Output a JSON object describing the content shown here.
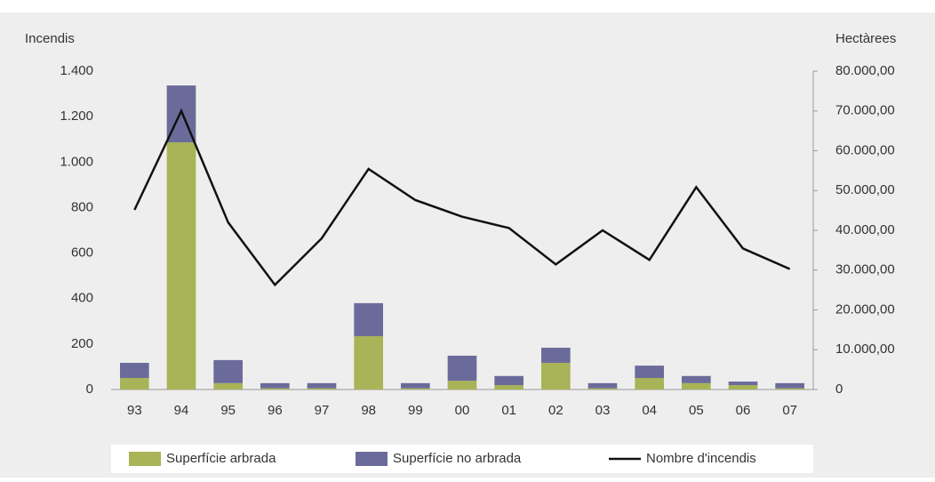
{
  "chart_data": {
    "type": "bar-line",
    "y_label": "Incendis",
    "y2_label": "Hectàrees",
    "categories": [
      "93",
      "94",
      "95",
      "96",
      "97",
      "98",
      "99",
      "00",
      "01",
      "02",
      "03",
      "04",
      "05",
      "06",
      "07"
    ],
    "series": [
      {
        "name": "Superfície arbrada",
        "color": "#a9b357",
        "axis": "y2",
        "type": "bar",
        "values": [
          2900,
          62100,
          1600,
          300,
          300,
          13400,
          300,
          2200,
          1100,
          6700,
          300,
          2900,
          1600,
          1100,
          300
        ]
      },
      {
        "name": "Superfície no arbrada",
        "color": "#6b6b9b",
        "axis": "y2",
        "type": "bar",
        "values": [
          3800,
          14300,
          5800,
          1300,
          1300,
          8300,
          1300,
          6300,
          2300,
          3800,
          1300,
          3100,
          1800,
          900,
          1300
        ]
      },
      {
        "name": "Nombre d'incendis",
        "color": "#111111",
        "axis": "y",
        "type": "line",
        "values": [
          790,
          1225,
          735,
          460,
          665,
          970,
          833,
          760,
          710,
          550,
          700,
          570,
          890,
          620,
          530
        ]
      }
    ],
    "ylim": [
      0,
      1400
    ],
    "yticks": [
      0,
      200,
      400,
      600,
      800,
      {
        "value": 1000,
        "label": "1.000"
      },
      {
        "value": 1200,
        "label": "1.200"
      },
      {
        "value": 1400,
        "label": "1.400"
      }
    ],
    "y2lim": [
      0,
      80000
    ],
    "y2ticks": [
      0,
      {
        "value": 10000,
        "label": "10.000,00"
      },
      {
        "value": 20000,
        "label": "20.000,00"
      },
      {
        "value": 30000,
        "label": "30.000,00"
      },
      {
        "value": 40000,
        "label": "40.000,00"
      },
      {
        "value": 50000,
        "label": "50.000,00"
      },
      {
        "value": 60000,
        "label": "60.000,00"
      },
      {
        "value": 70000,
        "label": "70.000,00"
      },
      {
        "value": 80000,
        "label": "80.000,00"
      }
    ],
    "stacked": true,
    "legend": "bottom"
  }
}
